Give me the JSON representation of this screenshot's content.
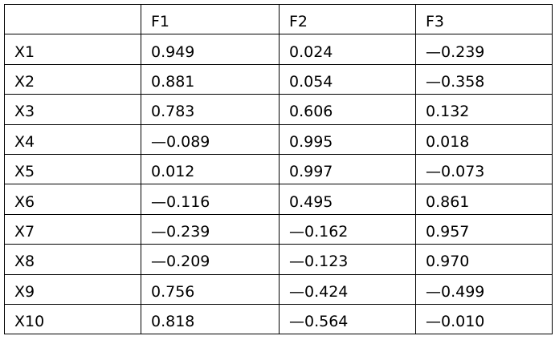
{
  "table": {
    "header": [
      "F1",
      "F2",
      "F3"
    ],
    "rows": [
      [
        "X1",
        "0.949",
        "0.024",
        "—0.239"
      ],
      [
        "X2",
        "0.881",
        "0.054",
        "—0.358"
      ],
      [
        "X3",
        "0.783",
        "0.606",
        "0.132"
      ],
      [
        "X4",
        "—0.089",
        "0.995",
        "0.018"
      ],
      [
        "X5",
        "0.012",
        "0.997",
        "—0.073"
      ],
      [
        "X6",
        "—0.116",
        "0.495",
        "0.861"
      ],
      [
        "X7",
        "—0.239",
        "—0.162",
        "0.957"
      ],
      [
        "X8",
        "—0.209",
        "—0.123",
        "0.970"
      ],
      [
        "X9",
        "0.756",
        "—0.424",
        "—0.499"
      ],
      [
        "X10",
        "0.818",
        "—0.564",
        "—0.010"
      ]
    ]
  }
}
